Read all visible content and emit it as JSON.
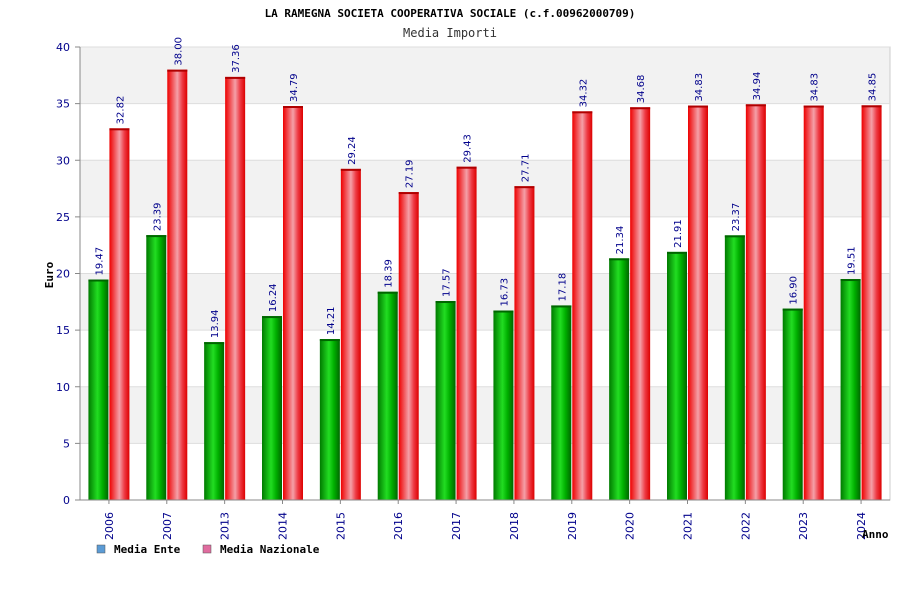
{
  "chart_data": {
    "type": "bar",
    "title": "LA RAMEGNA SOCIETA COOPERATIVA SOCIALE (c.f.00962000709)",
    "subtitle": "Media Importi",
    "ylabel": "Euro",
    "xlabel": "Anno",
    "ylim": [
      0,
      40
    ],
    "yticks": [
      "0",
      "5",
      "10",
      "15",
      "20",
      "25",
      "30",
      "35",
      "40"
    ],
    "grid": true,
    "legend_position": "bottom-left",
    "categories": [
      "2006",
      "2007",
      "2013",
      "2014",
      "2015",
      "2016",
      "2017",
      "2018",
      "2019",
      "2020",
      "2021",
      "2022",
      "2023",
      "2024"
    ],
    "series": [
      {
        "name": "Media Ente",
        "color": "#00c000",
        "legend_color": "#5b9bd5",
        "values": [
          19.47,
          23.39,
          13.94,
          16.24,
          14.21,
          18.39,
          17.57,
          16.73,
          17.18,
          21.34,
          21.91,
          23.37,
          16.9,
          19.51
        ],
        "labels": [
          "19.47",
          "23.39",
          "13.94",
          "16.24",
          "14.21",
          "18.39",
          "17.57",
          "16.73",
          "17.18",
          "21.34",
          "21.91",
          "23.37",
          "16.90",
          "19.51"
        ]
      },
      {
        "name": "Media Nazionale",
        "color": "#e8101c",
        "legend_color": "#e06c9f",
        "values": [
          32.82,
          38.0,
          37.36,
          34.79,
          29.24,
          27.19,
          29.43,
          27.71,
          34.32,
          34.68,
          34.83,
          34.94,
          34.83,
          34.85
        ],
        "labels": [
          "32.82",
          "38.00",
          "37.36",
          "34.79",
          "29.24",
          "27.19",
          "29.43",
          "27.71",
          "34.32",
          "34.68",
          "34.83",
          "34.94",
          "34.83",
          "34.85"
        ]
      }
    ]
  }
}
